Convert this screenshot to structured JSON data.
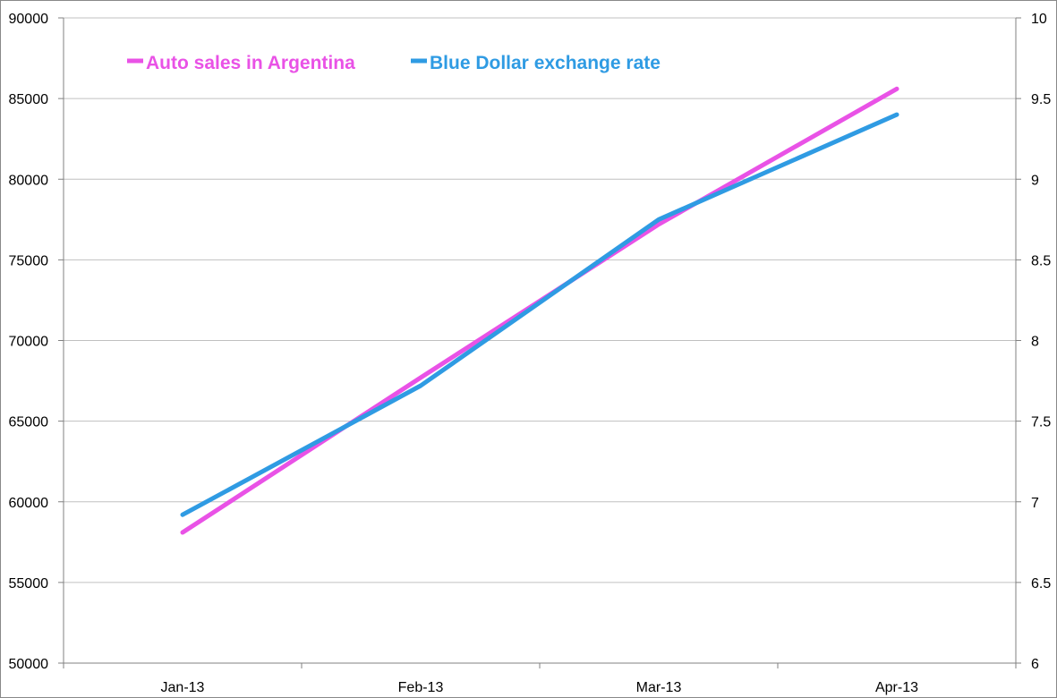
{
  "chart_data": {
    "type": "line",
    "categories": [
      "Jan-13",
      "Feb-13",
      "Mar-13",
      "Apr-13"
    ],
    "series": [
      {
        "name": "Auto sales in Argentina",
        "axis": "left",
        "color": "#e952e6",
        "values": [
          58100,
          67700,
          77200,
          85600
        ]
      },
      {
        "name": "Blue Dollar exchange rate",
        "axis": "right",
        "color": "#2f9be3",
        "values": [
          6.92,
          7.72,
          8.75,
          9.4
        ]
      }
    ],
    "y_left": {
      "ylim": [
        50000,
        90000
      ],
      "ticks": [
        {
          "value": 90000,
          "label": "90000"
        },
        {
          "value": 85000,
          "label": "85000"
        },
        {
          "value": 80000,
          "label": "80000"
        },
        {
          "value": 75000,
          "label": "75000"
        },
        {
          "value": 70000,
          "label": "70000"
        },
        {
          "value": 65000,
          "label": "65000"
        },
        {
          "value": 60000,
          "label": "60000"
        },
        {
          "value": 55000,
          "label": "55000"
        },
        {
          "value": 50000,
          "label": "50000"
        }
      ]
    },
    "y_right": {
      "ylim": [
        6,
        10
      ],
      "ticks": [
        {
          "value": 10,
          "label": "10"
        },
        {
          "value": 9.5,
          "label": "9.5"
        },
        {
          "value": 9,
          "label": "9"
        },
        {
          "value": 8.5,
          "label": "8.5"
        },
        {
          "value": 8,
          "label": "8"
        },
        {
          "value": 7.5,
          "label": "7.5"
        },
        {
          "value": 7,
          "label": "7"
        },
        {
          "value": 6.5,
          "label": "6.5"
        },
        {
          "value": 6,
          "label": "6"
        }
      ]
    },
    "grid": true,
    "legend": {
      "placement": "top-left",
      "items": [
        "Auto sales in Argentina",
        "Blue Dollar exchange rate"
      ]
    },
    "colors": {
      "gridline": "#c0c0c0",
      "axis": "#808080",
      "border": "#888888"
    }
  }
}
